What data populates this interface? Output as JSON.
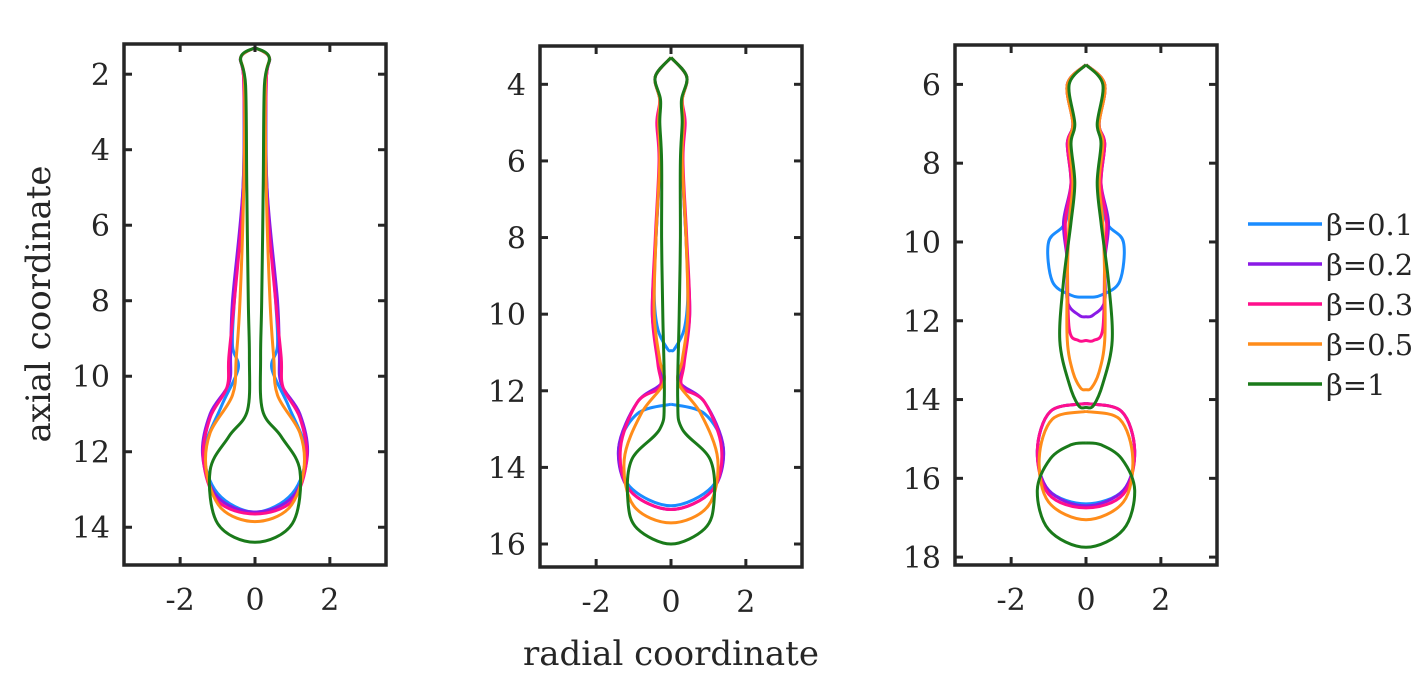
{
  "chart_data": {
    "type": "line",
    "xlabel": "radial coordinate",
    "ylabel": "axial coordinate",
    "y_reversed": true,
    "legend": {
      "placement": "right",
      "entries": [
        {
          "label": "β=0.1",
          "color": "#1a8cff"
        },
        {
          "label": "β=0.2",
          "color": "#8a1ae6"
        },
        {
          "label": "β=0.3",
          "color": "#ff0f8c"
        },
        {
          "label": "β=0.5",
          "color": "#ff8c1a"
        },
        {
          "label": "β=1",
          "color": "#1a7a1a"
        }
      ]
    },
    "panels": [
      {
        "xlim": [
          -3.5,
          3.5
        ],
        "ylim": [
          1.2,
          15.0
        ],
        "xticks": [
          "-2",
          "0",
          "2"
        ],
        "xtick_values": [
          -2,
          0,
          2
        ],
        "yticks": [
          "2",
          "4",
          "6",
          "8",
          "10",
          "12",
          "14"
        ],
        "ytick_values": [
          2,
          4,
          6,
          8,
          10,
          12,
          14
        ],
        "series": [
          {
            "color": "#1a8cff",
            "points": [
              [
                0,
                1.3
              ],
              [
                0.38,
                1.55
              ],
              [
                0.3,
                2.2
              ],
              [
                0.32,
                5
              ],
              [
                0.55,
                8
              ],
              [
                0.6,
                9.2
              ],
              [
                0.45,
                9.8
              ],
              [
                0.9,
                10.8
              ],
              [
                1.35,
                12
              ],
              [
                1.0,
                13.1
              ],
              [
                0,
                13.6
              ]
            ]
          },
          {
            "color": "#8a1ae6",
            "points": [
              [
                0,
                1.3
              ],
              [
                0.38,
                1.55
              ],
              [
                0.3,
                2.2
              ],
              [
                0.32,
                5
              ],
              [
                0.6,
                8
              ],
              [
                0.65,
                9.4
              ],
              [
                0.7,
                10.2
              ],
              [
                1.2,
                11
              ],
              [
                1.4,
                12.1
              ],
              [
                1.0,
                13.2
              ],
              [
                0,
                13.6
              ]
            ]
          },
          {
            "color": "#ff0f8c",
            "points": [
              [
                0,
                1.3
              ],
              [
                0.38,
                1.55
              ],
              [
                0.3,
                2.2
              ],
              [
                0.3,
                5
              ],
              [
                0.55,
                8
              ],
              [
                0.7,
                9.5
              ],
              [
                0.75,
                10.3
              ],
              [
                1.2,
                11.1
              ],
              [
                1.38,
                12.2
              ],
              [
                1.0,
                13.3
              ],
              [
                0,
                13.65
              ]
            ]
          },
          {
            "color": "#ff8c1a",
            "points": [
              [
                0,
                1.3
              ],
              [
                0.38,
                1.55
              ],
              [
                0.28,
                2.2
              ],
              [
                0.3,
                5
              ],
              [
                0.4,
                8
              ],
              [
                0.5,
                9.5
              ],
              [
                0.6,
                10.5
              ],
              [
                1.2,
                11.5
              ],
              [
                1.3,
                12.5
              ],
              [
                0.9,
                13.5
              ],
              [
                0,
                13.85
              ]
            ]
          },
          {
            "color": "#1a7a1a",
            "points": [
              [
                0,
                1.3
              ],
              [
                0.38,
                1.55
              ],
              [
                0.25,
                2.3
              ],
              [
                0.22,
                5
              ],
              [
                0.18,
                8
              ],
              [
                0.15,
                9.5
              ],
              [
                0.2,
                10.9
              ],
              [
                0.7,
                11.6
              ],
              [
                1.2,
                12.5
              ],
              [
                1.0,
                13.9
              ],
              [
                0,
                14.4
              ]
            ]
          }
        ]
      },
      {
        "xlim": [
          -3.5,
          3.5
        ],
        "ylim": [
          3.0,
          16.6
        ],
        "xticks": [
          "-2",
          "0",
          "2"
        ],
        "xtick_values": [
          -2,
          0,
          2
        ],
        "yticks": [
          "4",
          "6",
          "8",
          "10",
          "12",
          "14",
          "16"
        ],
        "ytick_values": [
          4,
          6,
          8,
          10,
          12,
          14,
          16
        ],
        "series": [
          {
            "color": "#1a8cff",
            "points": [
              [
                0,
                3.3
              ],
              [
                0.42,
                3.8
              ],
              [
                0.3,
                4.4
              ],
              [
                0.35,
                5
              ],
              [
                0.3,
                6
              ],
              [
                0.4,
                8
              ],
              [
                0.45,
                9.5
              ],
              [
                0.35,
                10.4
              ],
              [
                0.1,
                10.9
              ],
              [
                0,
                10.95
              ]
            ],
            "bulb": [
              [
                0,
                12.35
              ],
              [
                0.9,
                12.6
              ],
              [
                1.4,
                13.5
              ],
              [
                1.1,
                14.5
              ],
              [
                0,
                15.0
              ]
            ]
          },
          {
            "color": "#8a1ae6",
            "points": [
              [
                0,
                3.3
              ],
              [
                0.42,
                3.8
              ],
              [
                0.3,
                4.4
              ],
              [
                0.35,
                5
              ],
              [
                0.3,
                6
              ],
              [
                0.4,
                8
              ],
              [
                0.5,
                10
              ],
              [
                0.3,
                11.3
              ],
              [
                0.25,
                11.8
              ],
              [
                0.9,
                12.3
              ],
              [
                1.4,
                13.5
              ],
              [
                1.1,
                14.6
              ],
              [
                0,
                15.1
              ]
            ]
          },
          {
            "color": "#ff0f8c",
            "points": [
              [
                0,
                3.3
              ],
              [
                0.42,
                3.8
              ],
              [
                0.3,
                4.4
              ],
              [
                0.38,
                5
              ],
              [
                0.32,
                6
              ],
              [
                0.42,
                8
              ],
              [
                0.5,
                10
              ],
              [
                0.35,
                11.3
              ],
              [
                0.3,
                11.9
              ],
              [
                0.9,
                12.3
              ],
              [
                1.35,
                13.5
              ],
              [
                1.1,
                14.6
              ],
              [
                0,
                15.1
              ]
            ]
          },
          {
            "color": "#ff8c1a",
            "points": [
              [
                0,
                3.3
              ],
              [
                0.42,
                3.8
              ],
              [
                0.3,
                4.4
              ],
              [
                0.33,
                5
              ],
              [
                0.3,
                6
              ],
              [
                0.4,
                8
              ],
              [
                0.45,
                10
              ],
              [
                0.3,
                11.2
              ],
              [
                0.2,
                11.8
              ],
              [
                0.8,
                12.6
              ],
              [
                1.25,
                13.8
              ],
              [
                1.0,
                15.0
              ],
              [
                0,
                15.45
              ]
            ]
          },
          {
            "color": "#1a7a1a",
            "points": [
              [
                0,
                3.3
              ],
              [
                0.42,
                3.8
              ],
              [
                0.28,
                4.4
              ],
              [
                0.3,
                5
              ],
              [
                0.25,
                6
              ],
              [
                0.25,
                8
              ],
              [
                0.22,
                10
              ],
              [
                0.18,
                12.2
              ],
              [
                0.3,
                13.0
              ],
              [
                1.05,
                13.8
              ],
              [
                1.15,
                14.9
              ],
              [
                0.9,
                15.6
              ],
              [
                0,
                16.0
              ]
            ]
          }
        ]
      },
      {
        "xlim": [
          -3.5,
          3.5
        ],
        "ylim": [
          5.0,
          18.2
        ],
        "xticks": [
          "-2",
          "0",
          "2"
        ],
        "xtick_values": [
          -2,
          0,
          2
        ],
        "yticks": [
          "6",
          "8",
          "10",
          "12",
          "14",
          "16",
          "18"
        ],
        "ytick_values": [
          6,
          8,
          10,
          12,
          14,
          16,
          18
        ],
        "series": [
          {
            "color": "#1a8cff",
            "points": [
              [
                0,
                5.5
              ],
              [
                0.5,
                6.0
              ],
              [
                0.35,
                7.0
              ],
              [
                0.5,
                7.5
              ],
              [
                0.4,
                8.5
              ],
              [
                0.55,
                9.5
              ],
              [
                1.0,
                10.0
              ],
              [
                0.9,
                11.0
              ],
              [
                0.4,
                11.35
              ],
              [
                0,
                11.4
              ]
            ],
            "bulb": [
              [
                0,
                14.1
              ],
              [
                0.95,
                14.3
              ],
              [
                1.3,
                15.3
              ],
              [
                1.0,
                16.3
              ],
              [
                0,
                16.65
              ]
            ]
          },
          {
            "color": "#8a1ae6",
            "points": [
              [
                0,
                5.5
              ],
              [
                0.5,
                6.0
              ],
              [
                0.35,
                7.0
              ],
              [
                0.5,
                7.5
              ],
              [
                0.4,
                8.5
              ],
              [
                0.6,
                9.5
              ],
              [
                0.5,
                10.5
              ],
              [
                0.5,
                11.5
              ],
              [
                0.2,
                11.85
              ],
              [
                0,
                11.9
              ]
            ],
            "bulb": [
              [
                0,
                14.1
              ],
              [
                0.95,
                14.3
              ],
              [
                1.3,
                15.3
              ],
              [
                1.0,
                16.3
              ],
              [
                0,
                16.7
              ]
            ]
          },
          {
            "color": "#ff0f8c",
            "points": [
              [
                0,
                5.5
              ],
              [
                0.5,
                6.0
              ],
              [
                0.35,
                7.0
              ],
              [
                0.5,
                7.5
              ],
              [
                0.4,
                8.5
              ],
              [
                0.55,
                9.5
              ],
              [
                0.5,
                10.5
              ],
              [
                0.45,
                12.2
              ],
              [
                0.2,
                12.5
              ],
              [
                0,
                12.5
              ]
            ],
            "bulb": [
              [
                0,
                14.1
              ],
              [
                0.95,
                14.3
              ],
              [
                1.3,
                15.3
              ],
              [
                1.0,
                16.4
              ],
              [
                0,
                16.75
              ]
            ]
          },
          {
            "color": "#ff8c1a",
            "points": [
              [
                0,
                5.5
              ],
              [
                0.5,
                6.0
              ],
              [
                0.35,
                7.0
              ],
              [
                0.45,
                7.5
              ],
              [
                0.35,
                8.5
              ],
              [
                0.45,
                9.5
              ],
              [
                0.5,
                11
              ],
              [
                0.5,
                12.5
              ],
              [
                0.35,
                13.3
              ],
              [
                0.15,
                13.7
              ],
              [
                0,
                13.75
              ]
            ],
            "bulb": [
              [
                0,
                14.3
              ],
              [
                0.9,
                14.5
              ],
              [
                1.25,
                15.5
              ],
              [
                1.0,
                16.6
              ],
              [
                0,
                17.05
              ]
            ]
          },
          {
            "color": "#1a7a1a",
            "points": [
              [
                0,
                5.5
              ],
              [
                0.45,
                6.0
              ],
              [
                0.3,
                7.0
              ],
              [
                0.4,
                7.5
              ],
              [
                0.3,
                8.5
              ],
              [
                0.4,
                9.5
              ],
              [
                0.6,
                11
              ],
              [
                0.7,
                12.5
              ],
              [
                0.45,
                13.6
              ],
              [
                0.2,
                14.15
              ],
              [
                0,
                14.2
              ]
            ],
            "bulb": [
              [
                0,
                15.1
              ],
              [
                0.4,
                15.15
              ],
              [
                0.95,
                15.5
              ],
              [
                1.3,
                16.3
              ],
              [
                1.0,
                17.3
              ],
              [
                0,
                17.75
              ]
            ]
          }
        ]
      }
    ]
  }
}
